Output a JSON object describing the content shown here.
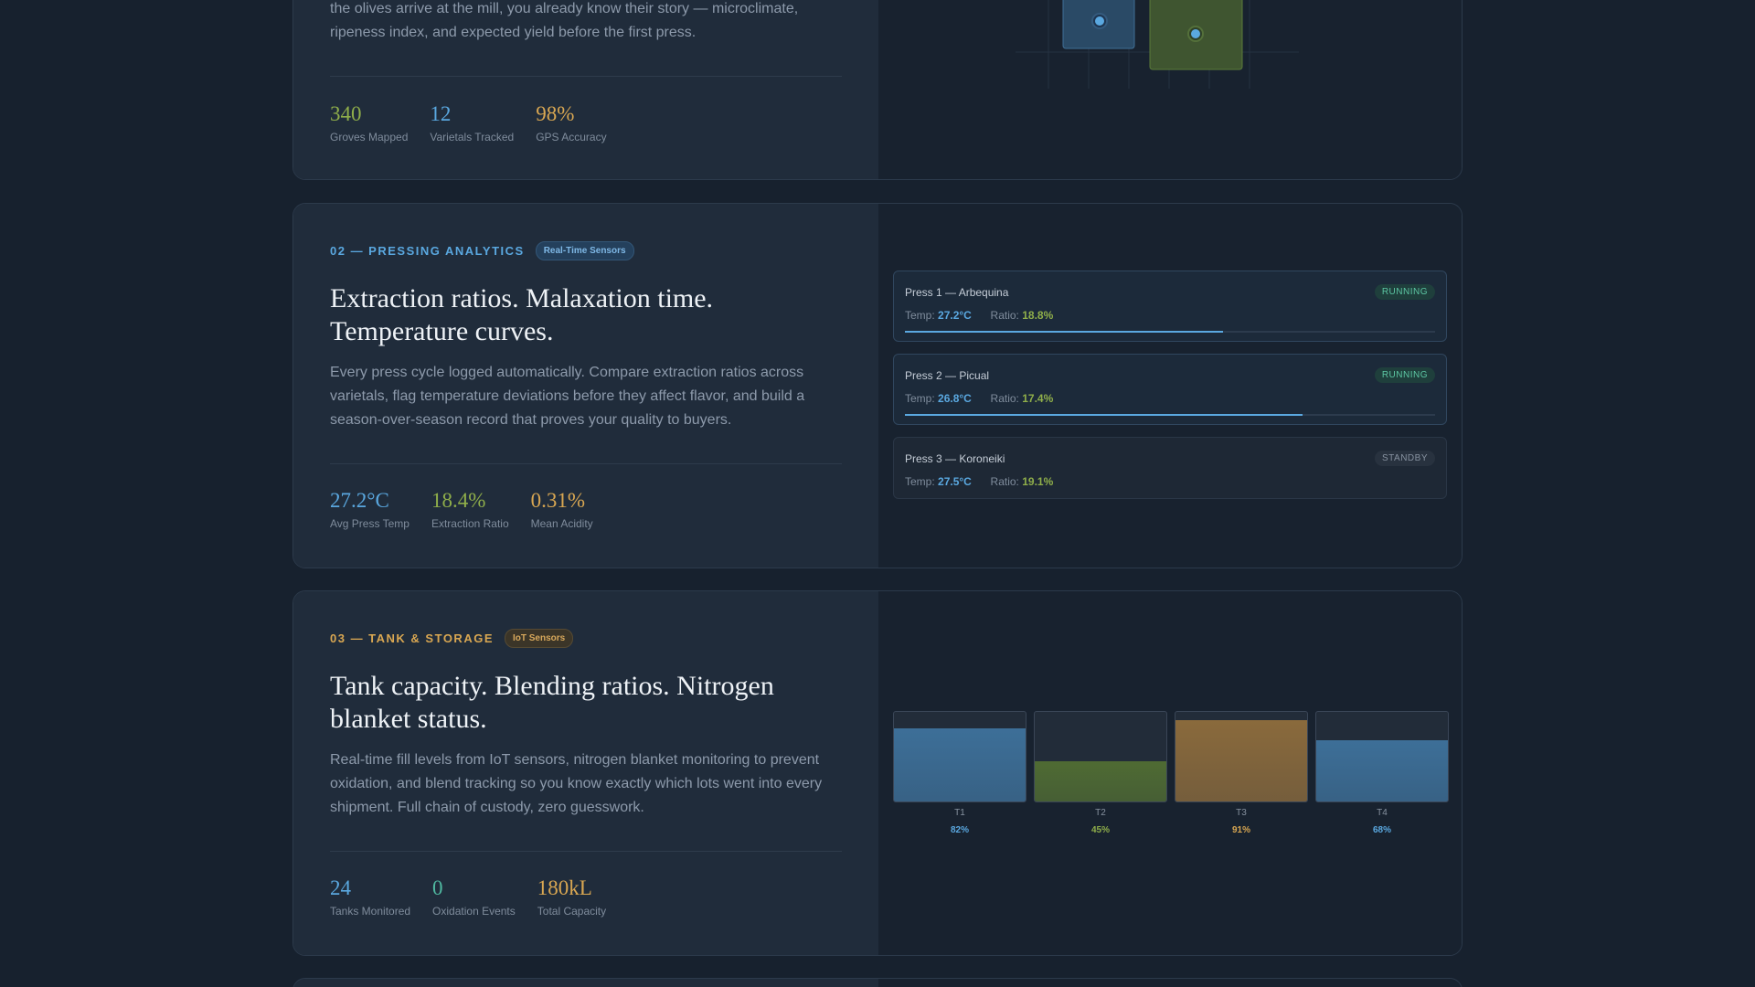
{
  "section1": {
    "body": "the olives arrive at the mill, you already know their story — microclimate, ripeness index, and expected yield before the first press.",
    "stats": [
      {
        "value": "340",
        "label": "Groves Mapped",
        "color": "#8fae4a"
      },
      {
        "value": "12",
        "label": "Varietals Tracked",
        "color": "#5aa8e0"
      },
      {
        "value": "98%",
        "label": "GPS Accuracy",
        "color": "#d9a752"
      }
    ]
  },
  "section2": {
    "eyebrow": "02 — PRESSING ANALYTICS",
    "tag": "Real-Time Sensors",
    "headline": "Extraction ratios. Malaxation time. Temperature curves.",
    "body": "Every press cycle logged automatically. Compare extraction ratios across varietals, flag temperature deviations before they affect flavor, and build a season-over-season record that proves your quality to buyers.",
    "stats": [
      {
        "value": "27.2°C",
        "label": "Avg Press Temp",
        "color": "#5aa8e0"
      },
      {
        "value": "18.4%",
        "label": "Extraction Ratio",
        "color": "#8fae4a"
      },
      {
        "value": "0.31%",
        "label": "Mean Acidity",
        "color": "#d9a752"
      }
    ],
    "temp_label": "Temp:",
    "ratio_label": "Ratio:",
    "presses": [
      {
        "name": "Press 1 — Arbequina",
        "status": "RUNNING",
        "temp": "27.2°C",
        "ratio": "18.8%",
        "progress": 0.6
      },
      {
        "name": "Press 2 — Picual",
        "status": "RUNNING",
        "temp": "26.8°C",
        "ratio": "17.4%",
        "progress": 0.75
      },
      {
        "name": "Press 3 — Koroneiki",
        "status": "STANDBY",
        "temp": "27.5°C",
        "ratio": "19.1%"
      }
    ]
  },
  "section3": {
    "eyebrow": "03 — TANK & STORAGE",
    "tag": "IoT Sensors",
    "headline": "Tank capacity. Blending ratios. Nitrogen blanket status.",
    "body": "Real-time fill levels from IoT sensors, nitrogen blanket monitoring to prevent oxidation, and blend tracking so you know exactly which lots went into every shipment. Full chain of custody, zero guesswork.",
    "stats": [
      {
        "value": "24",
        "label": "Tanks Monitored",
        "color": "#5aa8e0"
      },
      {
        "value": "0",
        "label": "Oxidation Events",
        "color": "#4fb8a0"
      },
      {
        "value": "180kL",
        "label": "Total Capacity",
        "color": "#d9a752"
      }
    ],
    "tanks": [
      {
        "name": "T1",
        "pct": "82%",
        "level": 0.82,
        "color": "#5aa8e0",
        "fill": "#3d6f98"
      },
      {
        "name": "T2",
        "pct": "45%",
        "level": 0.45,
        "color": "#8fae4a",
        "fill": "#4f6b33"
      },
      {
        "name": "T3",
        "pct": "91%",
        "level": 0.91,
        "color": "#d9a752",
        "fill": "#8a6a3c"
      },
      {
        "name": "T4",
        "pct": "68%",
        "level": 0.68,
        "color": "#5aa8e0",
        "fill": "#3d6f98"
      }
    ]
  },
  "colors": {
    "eyebrow2": "#5aa8e0",
    "eyebrow3": "#d9a752",
    "map_tile_blue": "#2a4a66",
    "map_tile_green": "#3f5530"
  }
}
